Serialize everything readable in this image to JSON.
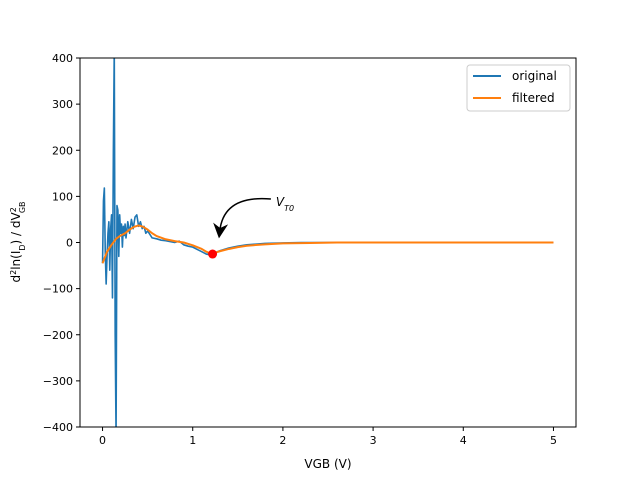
{
  "chart_data": {
    "type": "line",
    "title": "",
    "xlabel": "VGB (V)",
    "ylabel_main": "d",
    "ylabel_sup1": "2",
    "ylabel_mid": "ln(I",
    "ylabel_sub1": "D",
    "ylabel_mid2": ") / dV",
    "ylabel_sup2": "2",
    "ylabel_sub2": "GB",
    "xlim": [
      -0.25,
      5.25
    ],
    "ylim": [
      -400,
      400
    ],
    "xticks": [
      0,
      1,
      2,
      3,
      4,
      5
    ],
    "yticks": [
      -400,
      -300,
      -200,
      -100,
      0,
      100,
      200,
      300,
      400
    ],
    "grid": false,
    "legend_position": "top-right",
    "series": [
      {
        "name": "original",
        "color": "#1f77b4",
        "x": [
          0.0,
          0.01,
          0.02,
          0.03,
          0.04,
          0.05,
          0.06,
          0.07,
          0.08,
          0.09,
          0.1,
          0.11,
          0.12,
          0.13,
          0.14,
          0.15,
          0.16,
          0.17,
          0.18,
          0.19,
          0.2,
          0.21,
          0.22,
          0.23,
          0.24,
          0.25,
          0.26,
          0.28,
          0.3,
          0.32,
          0.34,
          0.36,
          0.38,
          0.4,
          0.42,
          0.44,
          0.46,
          0.48,
          0.5,
          0.55,
          0.6,
          0.65,
          0.7,
          0.75,
          0.8,
          0.85,
          0.9,
          0.95,
          1.0,
          1.05,
          1.1,
          1.15,
          1.2,
          1.25,
          1.3,
          1.4,
          1.5,
          1.6,
          1.8,
          2.0,
          2.2,
          2.5,
          3.0,
          3.5,
          4.0,
          4.5,
          5.0
        ],
        "values": [
          -45,
          90,
          118,
          -20,
          -90,
          -30,
          20,
          45,
          -60,
          30,
          60,
          -120,
          200,
          420,
          -200,
          -420,
          80,
          70,
          -30,
          60,
          20,
          40,
          -10,
          35,
          15,
          40,
          10,
          45,
          20,
          50,
          30,
          55,
          60,
          35,
          45,
          30,
          35,
          20,
          25,
          10,
          8,
          5,
          4,
          2,
          0,
          3,
          -5,
          -8,
          -10,
          -15,
          -20,
          -25,
          -27,
          -22,
          -18,
          -12,
          -8,
          -5,
          -2,
          -1,
          0,
          0,
          0,
          0,
          0,
          0,
          0
        ]
      },
      {
        "name": "filtered",
        "color": "#ff7f0e",
        "x": [
          0.0,
          0.05,
          0.1,
          0.15,
          0.2,
          0.25,
          0.3,
          0.35,
          0.4,
          0.45,
          0.5,
          0.55,
          0.6,
          0.7,
          0.8,
          0.9,
          1.0,
          1.1,
          1.15,
          1.2,
          1.25,
          1.3,
          1.4,
          1.5,
          1.6,
          1.8,
          2.0,
          2.3,
          2.6,
          3.0,
          3.5,
          4.0,
          4.5,
          5.0
        ],
        "values": [
          -45,
          -20,
          -5,
          8,
          15,
          20,
          28,
          34,
          37,
          34,
          28,
          20,
          14,
          7,
          3,
          0,
          -6,
          -14,
          -20,
          -24,
          -22,
          -19,
          -14,
          -10,
          -7,
          -4,
          -2,
          -1,
          0,
          0,
          0,
          0,
          0,
          0
        ]
      }
    ],
    "marker": {
      "x": 1.22,
      "y": -25,
      "color": "#ff0000"
    },
    "annotation": {
      "text_main": "V",
      "text_sub": "T0",
      "x": 1.9,
      "y": 90,
      "arrow_to_x": 1.3,
      "arrow_to_y": 25
    }
  }
}
